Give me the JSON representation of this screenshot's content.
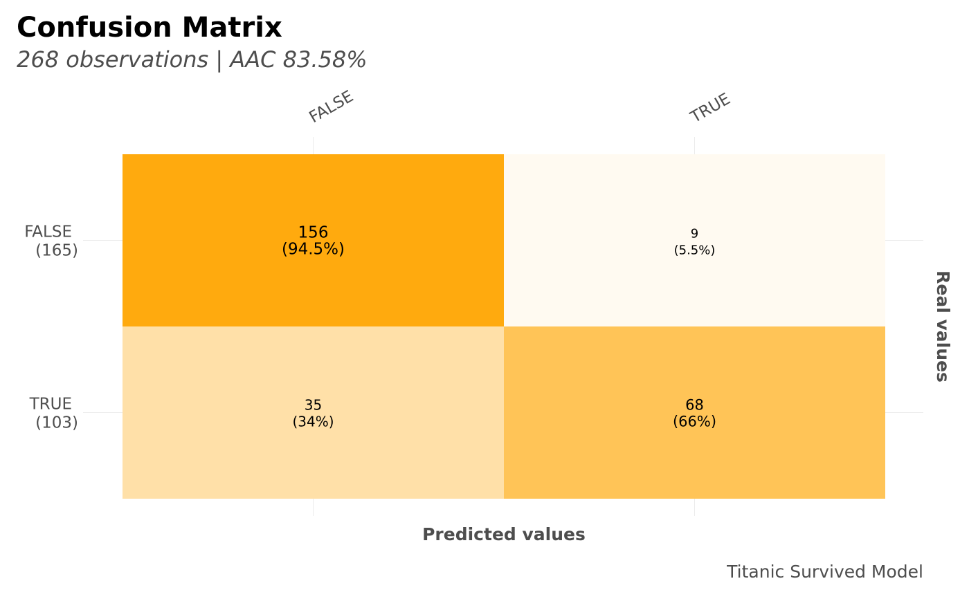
{
  "chart_data": {
    "type": "heatmap",
    "title": "Confusion Matrix",
    "subtitle": "268 observations | AAC 83.58%",
    "xlabel": "Predicted values",
    "ylabel": "Real values",
    "caption": "Titanic Survived Model",
    "x_categories": [
      "FALSE",
      "TRUE"
    ],
    "y_categories": [
      {
        "label": "FALSE",
        "total": "(165)"
      },
      {
        "label": "TRUE",
        "total": "(103)"
      }
    ],
    "cells": [
      {
        "real": "FALSE",
        "predicted": "FALSE",
        "count": "156",
        "percent": "(94.5%)",
        "value": 94.5
      },
      {
        "real": "FALSE",
        "predicted": "TRUE",
        "count": "9",
        "percent": "(5.5%)",
        "value": 5.5
      },
      {
        "real": "TRUE",
        "predicted": "FALSE",
        "count": "35",
        "percent": "(34%)",
        "value": 34
      },
      {
        "real": "TRUE",
        "predicted": "TRUE",
        "count": "68",
        "percent": "(66%)",
        "value": 66
      }
    ],
    "colors": {
      "low": "#ffffff",
      "high": "#ffa500"
    },
    "grid": true,
    "legend": "none"
  }
}
